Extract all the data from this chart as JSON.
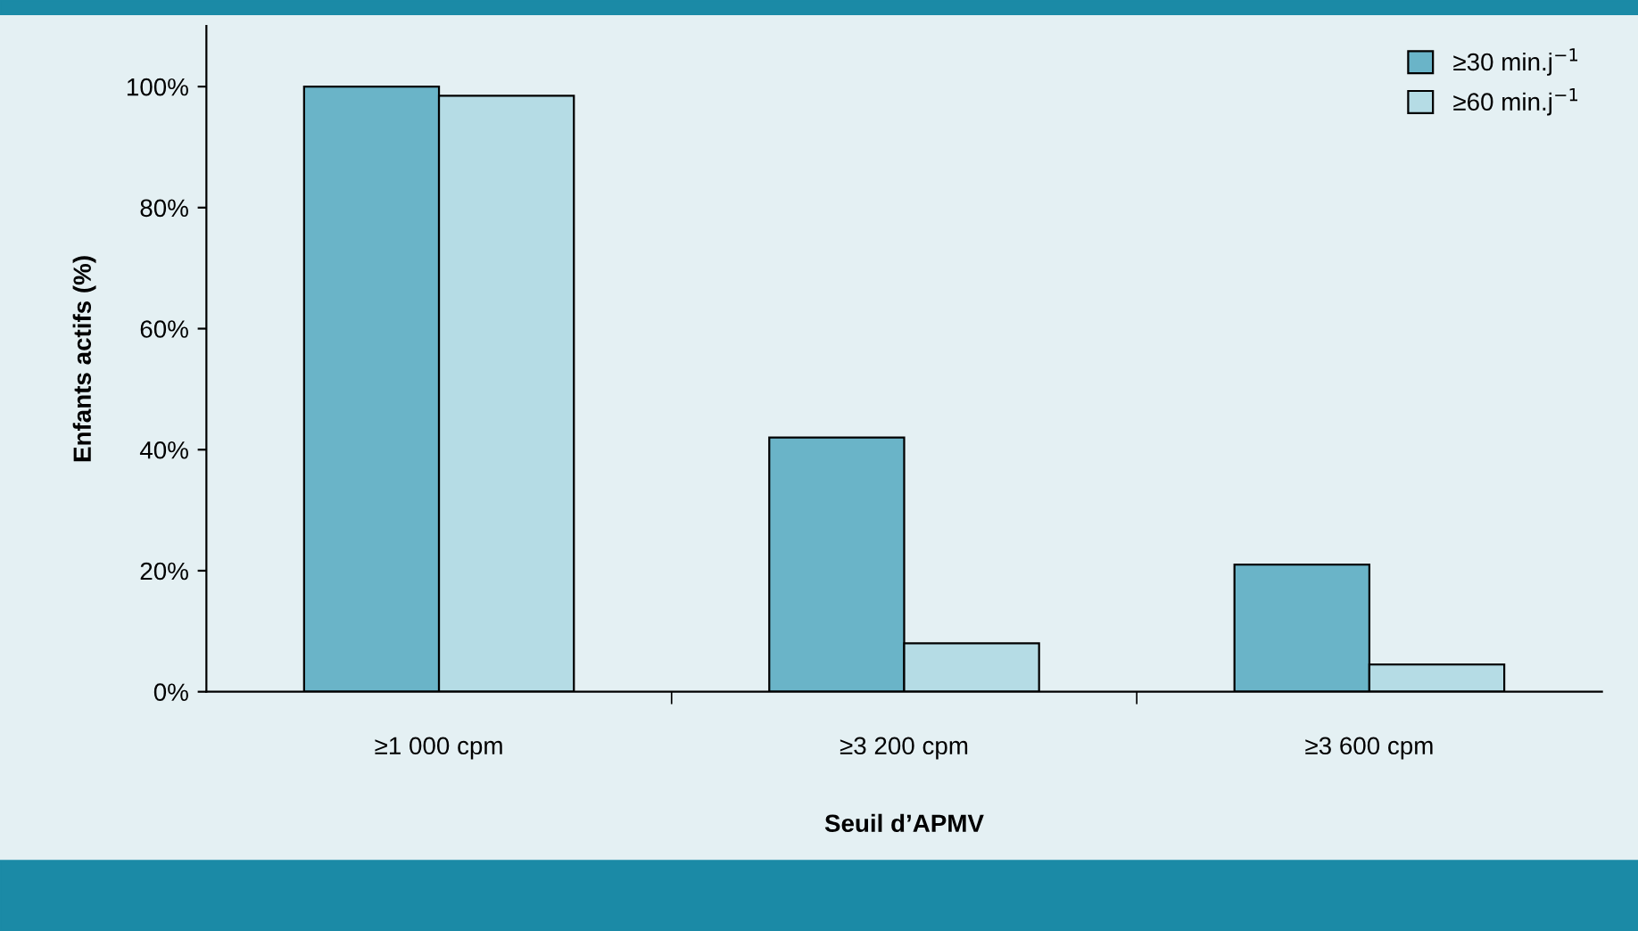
{
  "chart_data": {
    "type": "bar",
    "xlabel": "Seuil d’APMV",
    "ylabel": "Enfants actifs (%)",
    "categories": [
      "≥1 000 cpm",
      "≥3 200 cpm",
      "≥3 600 cpm"
    ],
    "series": [
      {
        "name": "≥30 min.j$^{−1}$",
        "color": "#6ab4c8",
        "values": [
          100,
          42,
          21
        ]
      },
      {
        "name": "≥60 min.j$^{−1}$",
        "color": "#b5dce5",
        "values": [
          98.5,
          8,
          4.5
        ]
      }
    ],
    "ylim": [
      0,
      110
    ],
    "yticks": [
      {
        "value": 0,
        "label": "0%"
      },
      {
        "value": 20,
        "label": "20%"
      },
      {
        "value": 40,
        "label": "40%"
      },
      {
        "value": 60,
        "label": "60%"
      },
      {
        "value": 80,
        "label": "80%"
      },
      {
        "value": 100,
        "label": "100%"
      }
    ],
    "grid": false,
    "legend": "top right"
  }
}
